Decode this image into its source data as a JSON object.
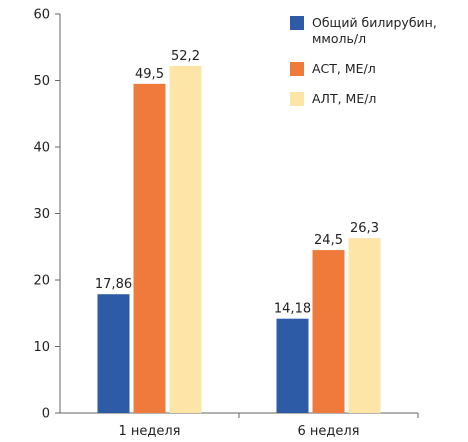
{
  "chart_data": {
    "type": "bar",
    "categories": [
      "1 неделя",
      "6 неделя"
    ],
    "series": [
      {
        "name": "Общий билирубин, ммоль/л",
        "name_lines": [
          "Общий билирубин,",
          "ммоль/л"
        ],
        "color": "#2E5BA6",
        "values": [
          17.86,
          14.18
        ],
        "labels": [
          "17,86",
          "14,18"
        ]
      },
      {
        "name": "АСТ, МЕ/л",
        "name_lines": [
          "АСТ, МЕ/л"
        ],
        "color": "#F07A3C",
        "values": [
          49.5,
          24.5
        ],
        "labels": [
          "49,5",
          "24,5"
        ]
      },
      {
        "name": "АЛТ, МЕ/л",
        "name_lines": [
          "АЛТ, МЕ/л"
        ],
        "color": "#FDE5A8",
        "values": [
          52.2,
          26.3
        ],
        "labels": [
          "52,2",
          "26,3"
        ]
      }
    ],
    "ylim": [
      0,
      60
    ],
    "yticks": [
      0,
      10,
      20,
      30,
      40,
      50,
      60
    ],
    "title": "",
    "xlabel": "",
    "ylabel": "",
    "grid": false,
    "legend_position": "top-right"
  }
}
